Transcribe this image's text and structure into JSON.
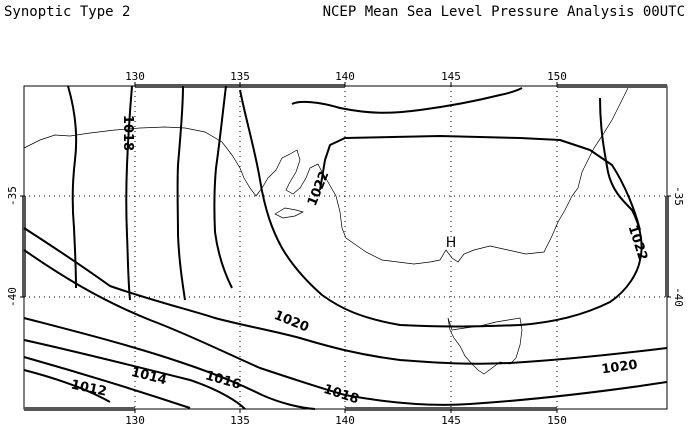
{
  "header": {
    "left": "Synoptic Type 2",
    "right": "NCEP Mean Sea Level Pressure Analysis 00UTC"
  },
  "map": {
    "lon_ticks": [
      "130",
      "135",
      "140",
      "145",
      "150"
    ],
    "lat_ticks": [
      "-35",
      "-40"
    ],
    "high_label": "H",
    "contour_labels": [
      "1012",
      "1014",
      "1016",
      "1018",
      "1018",
      "1020",
      "1020",
      "1022",
      "1022"
    ]
  }
}
